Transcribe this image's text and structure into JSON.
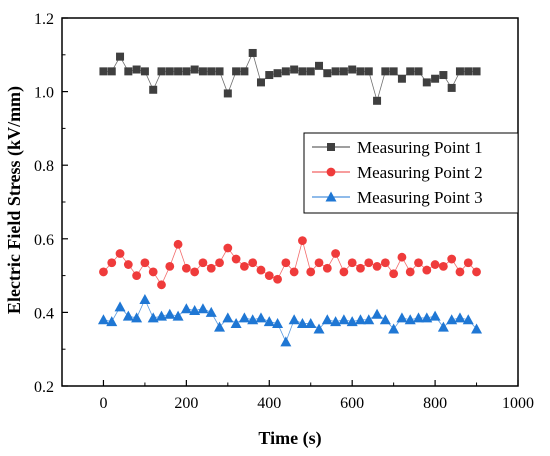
{
  "chart_data": {
    "type": "scatter",
    "xlabel": "Time (s)",
    "ylabel": "Electric Field Stress (kV/mm)",
    "xlim": [
      -100,
      1000
    ],
    "ylim": [
      0.2,
      1.2
    ],
    "xticks": [
      0,
      200,
      400,
      600,
      800,
      1000
    ],
    "yticks": [
      0.2,
      0.4,
      0.6,
      0.8,
      1.0,
      1.2
    ],
    "x_tick_labels": [
      "0",
      "200",
      "400",
      "600",
      "800",
      "1000"
    ],
    "y_tick_labels": [
      "0.2",
      "0.4",
      "0.6",
      "0.8",
      "1.0",
      "1.2"
    ],
    "legend_position": "middle-right",
    "x": [
      0,
      20,
      40,
      60,
      80,
      100,
      120,
      140,
      160,
      180,
      200,
      220,
      240,
      260,
      280,
      300,
      320,
      340,
      360,
      380,
      400,
      420,
      440,
      460,
      480,
      500,
      520,
      540,
      560,
      580,
      600,
      620,
      640,
      660,
      680,
      700,
      720,
      740,
      760,
      780,
      800,
      820,
      840,
      860,
      880,
      900
    ],
    "series": [
      {
        "name": "Measuring Point 1",
        "marker": "square",
        "color": "#3f3f3f",
        "values": [
          1.055,
          1.055,
          1.095,
          1.055,
          1.06,
          1.055,
          1.005,
          1.055,
          1.055,
          1.055,
          1.055,
          1.06,
          1.055,
          1.055,
          1.055,
          0.995,
          1.055,
          1.055,
          1.105,
          1.025,
          1.045,
          1.05,
          1.055,
          1.06,
          1.055,
          1.055,
          1.07,
          1.05,
          1.055,
          1.055,
          1.06,
          1.055,
          1.055,
          0.975,
          1.055,
          1.055,
          1.035,
          1.055,
          1.055,
          1.025,
          1.035,
          1.045,
          1.01,
          1.055,
          1.055,
          1.055
        ]
      },
      {
        "name": "Measuring Point 2",
        "marker": "circle",
        "color": "#ef3b3b",
        "values": [
          0.51,
          0.535,
          0.56,
          0.53,
          0.5,
          0.535,
          0.51,
          0.475,
          0.525,
          0.585,
          0.52,
          0.51,
          0.535,
          0.52,
          0.535,
          0.575,
          0.545,
          0.525,
          0.535,
          0.515,
          0.5,
          0.49,
          0.535,
          0.51,
          0.595,
          0.51,
          0.535,
          0.52,
          0.56,
          0.51,
          0.535,
          0.52,
          0.535,
          0.525,
          0.535,
          0.505,
          0.55,
          0.51,
          0.535,
          0.515,
          0.53,
          0.525,
          0.545,
          0.51,
          0.535,
          0.51
        ]
      },
      {
        "name": "Measuring Point 3",
        "marker": "triangle",
        "color": "#1f77d4",
        "values": [
          0.38,
          0.375,
          0.415,
          0.39,
          0.385,
          0.435,
          0.385,
          0.39,
          0.395,
          0.39,
          0.41,
          0.405,
          0.41,
          0.4,
          0.36,
          0.385,
          0.37,
          0.385,
          0.38,
          0.385,
          0.375,
          0.37,
          0.32,
          0.38,
          0.37,
          0.37,
          0.355,
          0.38,
          0.375,
          0.38,
          0.375,
          0.38,
          0.38,
          0.395,
          0.38,
          0.355,
          0.385,
          0.38,
          0.385,
          0.385,
          0.39,
          0.36,
          0.38,
          0.385,
          0.38,
          0.355
        ]
      }
    ]
  }
}
